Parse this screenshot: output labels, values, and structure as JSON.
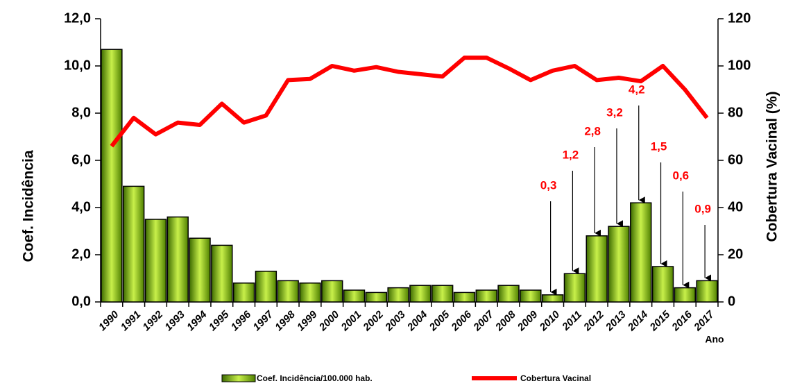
{
  "chart_data": {
    "type": "bar-line",
    "categories": [
      "1990",
      "1991",
      "1992",
      "1993",
      "1994",
      "1995",
      "1996",
      "1997",
      "1998",
      "1999",
      "2000",
      "2001",
      "2002",
      "2003",
      "2004",
      "2005",
      "2006",
      "2007",
      "2008",
      "2009",
      "2010",
      "2011",
      "2012",
      "2013",
      "2014",
      "2015",
      "2016",
      "2017"
    ],
    "series": [
      {
        "name": "Coef. Incidência/100.000 hab.",
        "type": "bar",
        "color": "#7fb800",
        "values": [
          10.7,
          4.9,
          3.5,
          3.6,
          2.7,
          2.4,
          0.8,
          1.3,
          0.9,
          0.8,
          0.9,
          0.5,
          0.4,
          0.6,
          0.7,
          0.7,
          0.4,
          0.5,
          0.7,
          0.5,
          0.3,
          1.2,
          2.8,
          3.2,
          4.2,
          1.5,
          0.6,
          0.9
        ],
        "value_labels": [
          null,
          null,
          null,
          null,
          null,
          null,
          null,
          null,
          null,
          null,
          null,
          null,
          null,
          null,
          null,
          null,
          null,
          null,
          null,
          null,
          "0,3",
          "1,2",
          "2,8",
          "3,2",
          "4,2",
          "1,5",
          "0,6",
          "0,9"
        ]
      },
      {
        "name": "Cobertura Vacinal",
        "type": "line",
        "axis": "y2",
        "color": "#ff0000",
        "values": [
          66,
          78,
          71,
          76,
          75,
          84,
          76,
          79,
          94,
          94.5,
          100,
          98,
          99.5,
          97.5,
          96.5,
          95.5,
          103.5,
          103.5,
          99,
          94,
          98,
          100,
          94,
          95,
          93.5,
          100,
          90,
          78
        ]
      }
    ],
    "ylabel": "Coef. Incidência",
    "y2label": "Cobertura Vacinal (%)",
    "xlabel": "Ano",
    "ylim": [
      0,
      12
    ],
    "yticks": [
      {
        "value": 0,
        "label": "0,0"
      },
      {
        "value": 2,
        "label": "2,0"
      },
      {
        "value": 4,
        "label": "4,0"
      },
      {
        "value": 6,
        "label": "6,0"
      },
      {
        "value": 8,
        "label": "8,0"
      },
      {
        "value": 10,
        "label": "10,0"
      },
      {
        "value": 12,
        "label": "12,0"
      }
    ],
    "y2lim": [
      0,
      120
    ],
    "y2ticks": [
      0,
      20,
      40,
      60,
      80,
      100,
      120
    ]
  }
}
